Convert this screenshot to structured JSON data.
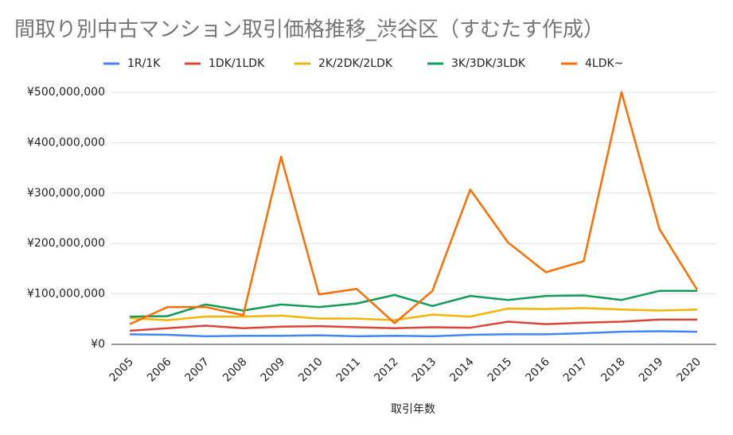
{
  "chart_data": {
    "type": "line",
    "title": "間取り別中古マンション取引価格推移_渋谷区（すむたす作成）",
    "x_label": "取引年数",
    "categories": [
      "2005",
      "2006",
      "2007",
      "2008",
      "2009",
      "2010",
      "2011",
      "2012",
      "2013",
      "2014",
      "2015",
      "2016",
      "2017",
      "2018",
      "2019",
      "2020"
    ],
    "series": [
      {
        "name": "1R/1K",
        "color": "#4285f4",
        "values": [
          20000000,
          19000000,
          16000000,
          17000000,
          17000000,
          18000000,
          16000000,
          17000000,
          16000000,
          19000000,
          20000000,
          20000000,
          22000000,
          25000000,
          26000000,
          25000000
        ]
      },
      {
        "name": "1DK/1LDK",
        "color": "#db4437",
        "values": [
          27000000,
          32000000,
          37000000,
          32000000,
          35000000,
          36000000,
          34000000,
          32000000,
          34000000,
          33000000,
          45000000,
          40000000,
          43000000,
          45000000,
          49000000,
          49000000
        ]
      },
      {
        "name": "2K/2DK/2LDK",
        "color": "#f4b400",
        "values": [
          52000000,
          48000000,
          55000000,
          55000000,
          57000000,
          51000000,
          51000000,
          48000000,
          59000000,
          55000000,
          71000000,
          70000000,
          72000000,
          69000000,
          67000000,
          69000000
        ]
      },
      {
        "name": "3K/3DK/3LDK",
        "color": "#0f9d58",
        "values": [
          55000000,
          56000000,
          79000000,
          67000000,
          79000000,
          74000000,
          81000000,
          98000000,
          76000000,
          96000000,
          88000000,
          96000000,
          97000000,
          88000000,
          106000000,
          106000000
        ]
      },
      {
        "name": "4LDK~",
        "color": "#ff6d01",
        "values": [
          40000000,
          74000000,
          74000000,
          58000000,
          372000000,
          99000000,
          110000000,
          42000000,
          106000000,
          307000000,
          202000000,
          143000000,
          165000000,
          500000000,
          229000000,
          108000000
        ]
      }
    ],
    "ylim": [
      0,
      500000000
    ],
    "yticks": [
      {
        "value": 0,
        "label": "¥0"
      },
      {
        "value": 100000000,
        "label": "¥100,000,000"
      },
      {
        "value": 200000000,
        "label": "¥200,000,000"
      },
      {
        "value": 300000000,
        "label": "¥300,000,000"
      },
      {
        "value": 400000000,
        "label": "¥400,000,000"
      },
      {
        "value": 500000000,
        "label": "¥500,000,000"
      }
    ],
    "grid": true,
    "legend": "top"
  }
}
